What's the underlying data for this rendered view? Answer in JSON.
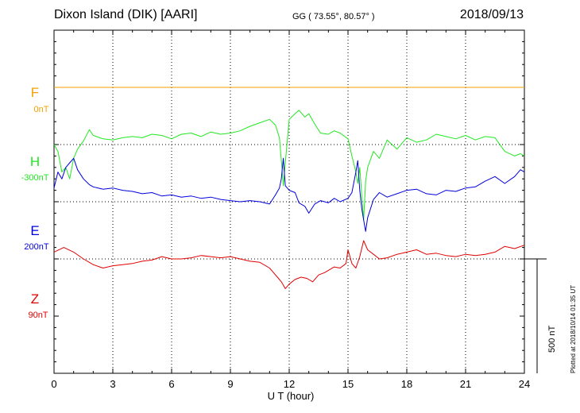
{
  "header": {
    "title": "Dixon Island (DIK)  [AARI]",
    "coords": "GG ( 73.55°,  80.57° )",
    "date": "2018/09/13"
  },
  "colors": {
    "F": "#f5a000",
    "H": "#22e822",
    "E": "#0000dd",
    "Z": "#e00000"
  },
  "channels": [
    {
      "name": "F",
      "offset": "0nT"
    },
    {
      "name": "H",
      "offset": "-300nT"
    },
    {
      "name": "E",
      "offset": "200nT"
    },
    {
      "name": "Z",
      "offset": "90nT"
    }
  ],
  "scale_bar_label": "500 nT",
  "plotted_note": "Plotted at 2018/10/14 01:35 UT",
  "chart_data": {
    "type": "line",
    "title": "Dixon Island (DIK)  [AARI]",
    "xlabel": "U T (hour)",
    "xlim": [
      0,
      24
    ],
    "xticks": [
      "0",
      "3",
      "6",
      "9",
      "12",
      "15",
      "18",
      "21",
      "24"
    ],
    "grid": true,
    "ylim_nT": [
      -1000,
      500
    ],
    "baselines_nT": [
      250,
      0,
      -250,
      -500
    ],
    "series": [
      {
        "name": "F",
        "x": [
          0,
          24
        ],
        "y": [
          250,
          250
        ]
      },
      {
        "name": "H",
        "x": [
          0,
          0.2,
          0.4,
          0.6,
          0.8,
          1.0,
          1.2,
          1.5,
          1.8,
          2.0,
          2.5,
          3.0,
          3.5,
          4.0,
          4.5,
          5.0,
          5.5,
          6.0,
          6.5,
          7.0,
          7.5,
          8.0,
          8.5,
          9.0,
          9.5,
          10.0,
          10.5,
          11.0,
          11.3,
          11.5,
          11.6,
          11.7,
          11.8,
          12.0,
          12.3,
          12.5,
          12.8,
          13.0,
          13.3,
          13.6,
          14.0,
          14.3,
          14.6,
          15.0,
          15.2,
          15.4,
          15.5,
          15.6,
          15.7,
          15.8,
          15.9,
          16.0,
          16.3,
          16.6,
          17.0,
          17.5,
          18.0,
          18.5,
          19.0,
          19.5,
          20.0,
          20.5,
          21.0,
          21.5,
          22.0,
          22.5,
          23.0,
          23.5,
          23.8,
          24.0
        ],
        "y": [
          0,
          -30,
          -120,
          -100,
          -150,
          -60,
          -20,
          15,
          65,
          40,
          25,
          20,
          30,
          35,
          30,
          45,
          40,
          25,
          45,
          50,
          35,
          55,
          45,
          50,
          60,
          80,
          95,
          110,
          85,
          30,
          -70,
          -180,
          -80,
          110,
          135,
          150,
          120,
          135,
          90,
          50,
          45,
          60,
          50,
          25,
          -50,
          -120,
          -170,
          -100,
          -220,
          -330,
          -160,
          -100,
          -30,
          -60,
          20,
          -20,
          30,
          10,
          20,
          45,
          35,
          25,
          40,
          20,
          35,
          30,
          -30,
          -50,
          -40,
          -50
        ]
      },
      {
        "name": "E",
        "x": [
          0,
          0.2,
          0.4,
          0.6,
          0.8,
          1.0,
          1.2,
          1.5,
          1.8,
          2.0,
          2.5,
          3.0,
          3.5,
          4.0,
          4.5,
          5.0,
          5.5,
          6.0,
          6.5,
          7.0,
          7.5,
          8.0,
          8.5,
          9.0,
          9.5,
          10.0,
          10.5,
          11.0,
          11.3,
          11.5,
          11.6,
          11.7,
          11.8,
          12.0,
          12.3,
          12.5,
          12.8,
          13.0,
          13.3,
          13.6,
          14.0,
          14.3,
          14.6,
          15.0,
          15.2,
          15.4,
          15.5,
          15.6,
          15.7,
          15.8,
          15.9,
          16.0,
          16.3,
          16.6,
          17.0,
          17.5,
          18.0,
          18.5,
          19.0,
          19.5,
          20.0,
          20.5,
          21.0,
          21.5,
          22.0,
          22.5,
          23.0,
          23.5,
          23.8,
          24.0
        ],
        "y": [
          -190,
          -120,
          -150,
          -100,
          -80,
          -60,
          -110,
          -150,
          -175,
          -185,
          -195,
          -190,
          -200,
          -205,
          -215,
          -210,
          -225,
          -220,
          -230,
          -225,
          -235,
          -230,
          -240,
          -245,
          -250,
          -245,
          -250,
          -260,
          -220,
          -190,
          -150,
          -60,
          -180,
          -200,
          -210,
          -255,
          -270,
          -300,
          -260,
          -245,
          -255,
          -235,
          -250,
          -235,
          -210,
          -120,
          -70,
          -200,
          -280,
          -330,
          -380,
          -320,
          -240,
          -210,
          -230,
          -215,
          -200,
          -195,
          -215,
          -220,
          -200,
          -205,
          -190,
          -185,
          -160,
          -140,
          -170,
          -140,
          -110,
          -120
        ]
      },
      {
        "name": "Z",
        "x": [
          0,
          0.5,
          1.0,
          1.5,
          2.0,
          2.5,
          3.0,
          3.5,
          4.0,
          4.5,
          5.0,
          5.5,
          6.0,
          6.5,
          7.0,
          7.5,
          8.0,
          8.5,
          9.0,
          9.5,
          10.0,
          10.5,
          11.0,
          11.2,
          11.4,
          11.6,
          11.8,
          12.0,
          12.3,
          12.6,
          12.9,
          13.2,
          13.5,
          13.8,
          14.0,
          14.3,
          14.6,
          14.9,
          15.0,
          15.2,
          15.4,
          15.6,
          15.8,
          16.0,
          16.3,
          16.6,
          17.0,
          17.5,
          18.0,
          18.5,
          19.0,
          19.5,
          20.0,
          20.5,
          21.0,
          21.5,
          22.0,
          22.5,
          23.0,
          23.5,
          24.0
        ],
        "y": [
          -470,
          -450,
          -470,
          -500,
          -525,
          -540,
          -530,
          -525,
          -520,
          -510,
          -505,
          -490,
          -500,
          -500,
          -495,
          -485,
          -490,
          -495,
          -490,
          -500,
          -510,
          -515,
          -540,
          -560,
          -580,
          -600,
          -630,
          -610,
          -590,
          -580,
          -585,
          -600,
          -570,
          -560,
          -550,
          -535,
          -540,
          -520,
          -460,
          -520,
          -540,
          -490,
          -420,
          -460,
          -480,
          -500,
          -495,
          -480,
          -470,
          -460,
          -480,
          -475,
          -485,
          -490,
          -480,
          -485,
          -480,
          -470,
          -445,
          -455,
          -440
        ]
      }
    ]
  }
}
